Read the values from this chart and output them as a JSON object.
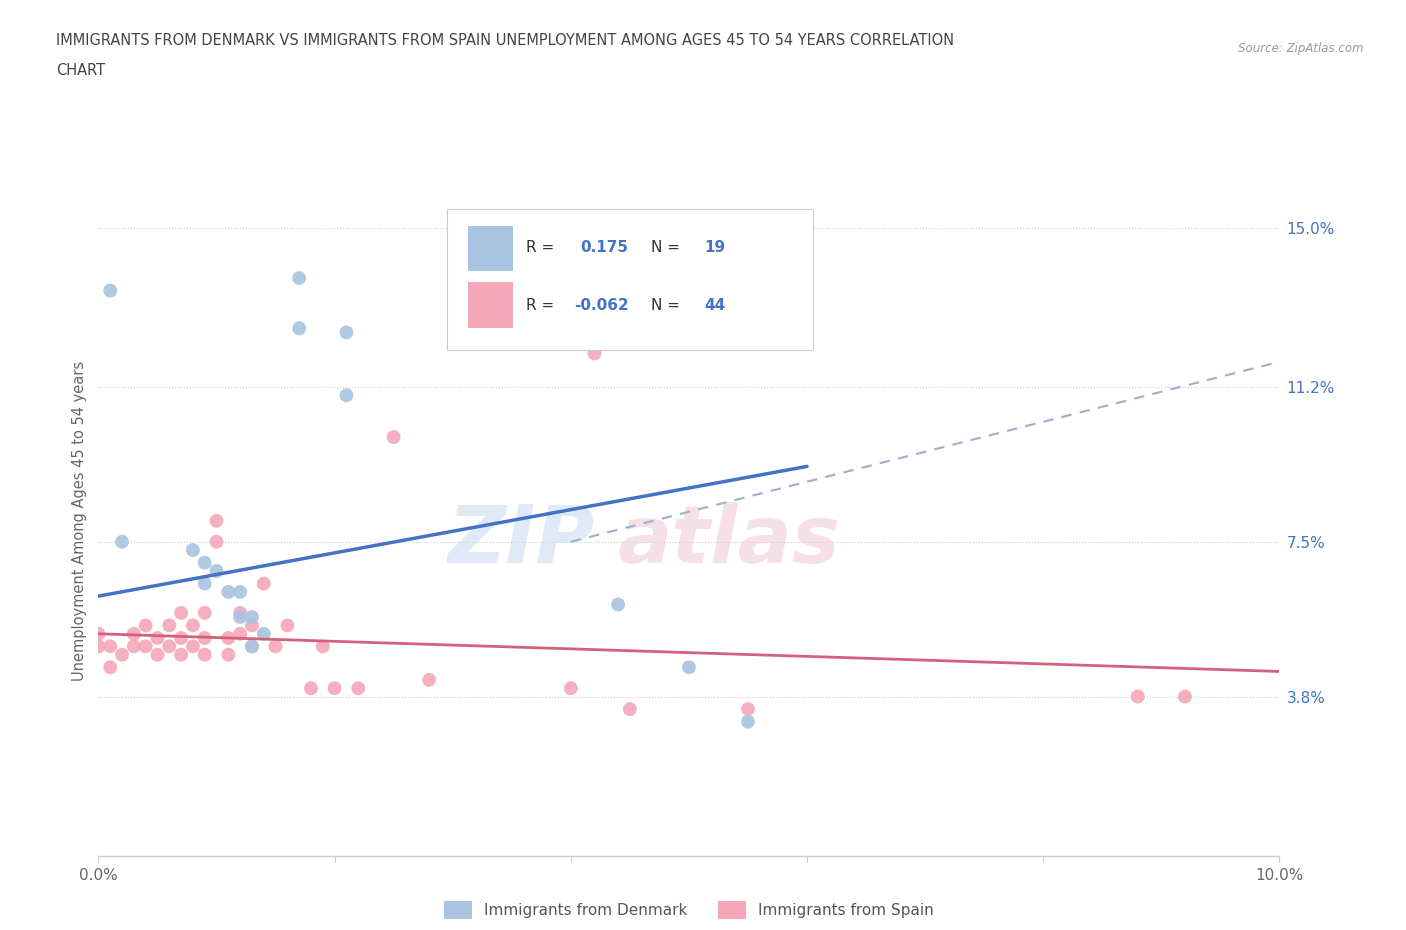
{
  "title_line1": "IMMIGRANTS FROM DENMARK VS IMMIGRANTS FROM SPAIN UNEMPLOYMENT AMONG AGES 45 TO 54 YEARS CORRELATION",
  "title_line2": "CHART",
  "source": "Source: ZipAtlas.com",
  "ylabel": "Unemployment Among Ages 45 to 54 years",
  "xlim": [
    0.0,
    0.1
  ],
  "ylim": [
    0.0,
    0.16
  ],
  "xticks": [
    0.0,
    0.02,
    0.04,
    0.06,
    0.08,
    0.1
  ],
  "ytick_positions": [
    0.038,
    0.075,
    0.112,
    0.15
  ],
  "ytick_labels": [
    "3.8%",
    "7.5%",
    "11.2%",
    "15.0%"
  ],
  "denmark_R": 0.175,
  "denmark_N": 19,
  "spain_R": -0.062,
  "spain_N": 44,
  "denmark_color": "#a8c4e0",
  "spain_color": "#f4a7b9",
  "denmark_line_color": "#4472c4",
  "spain_line_color": "#d4607a",
  "dash_line_color": "#9ab0cc",
  "background_color": "#ffffff",
  "grid_color": "#cccccc",
  "denmark_scatter_x": [
    0.001,
    0.002,
    0.017,
    0.017,
    0.021,
    0.021,
    0.008,
    0.009,
    0.009,
    0.01,
    0.011,
    0.012,
    0.012,
    0.013,
    0.013,
    0.014,
    0.044,
    0.05,
    0.055
  ],
  "denmark_scatter_y": [
    0.135,
    0.075,
    0.138,
    0.126,
    0.125,
    0.11,
    0.073,
    0.07,
    0.065,
    0.068,
    0.063,
    0.063,
    0.057,
    0.057,
    0.05,
    0.053,
    0.06,
    0.045,
    0.032
  ],
  "spain_scatter_x": [
    0.0,
    0.0,
    0.001,
    0.001,
    0.002,
    0.003,
    0.003,
    0.004,
    0.004,
    0.005,
    0.005,
    0.006,
    0.006,
    0.007,
    0.007,
    0.007,
    0.008,
    0.008,
    0.009,
    0.009,
    0.009,
    0.01,
    0.01,
    0.011,
    0.011,
    0.012,
    0.012,
    0.013,
    0.013,
    0.014,
    0.015,
    0.016,
    0.018,
    0.019,
    0.02,
    0.022,
    0.025,
    0.028,
    0.04,
    0.042,
    0.045,
    0.055,
    0.088,
    0.092
  ],
  "spain_scatter_y": [
    0.05,
    0.053,
    0.045,
    0.05,
    0.048,
    0.05,
    0.053,
    0.05,
    0.055,
    0.048,
    0.052,
    0.05,
    0.055,
    0.048,
    0.052,
    0.058,
    0.05,
    0.055,
    0.048,
    0.052,
    0.058,
    0.075,
    0.08,
    0.048,
    0.052,
    0.053,
    0.058,
    0.05,
    0.055,
    0.065,
    0.05,
    0.055,
    0.04,
    0.05,
    0.04,
    0.04,
    0.1,
    0.042,
    0.04,
    0.12,
    0.035,
    0.035,
    0.038,
    0.038
  ],
  "denmark_trend_x0": 0.0,
  "denmark_trend_y0": 0.062,
  "denmark_trend_x1": 0.06,
  "denmark_trend_y1": 0.093,
  "spain_trend_x0": 0.0,
  "spain_trend_y0": 0.053,
  "spain_trend_x1": 0.1,
  "spain_trend_y1": 0.044,
  "dash_trend_x0": 0.04,
  "dash_trend_y0": 0.075,
  "dash_trend_x1": 0.1,
  "dash_trend_y1": 0.118
}
